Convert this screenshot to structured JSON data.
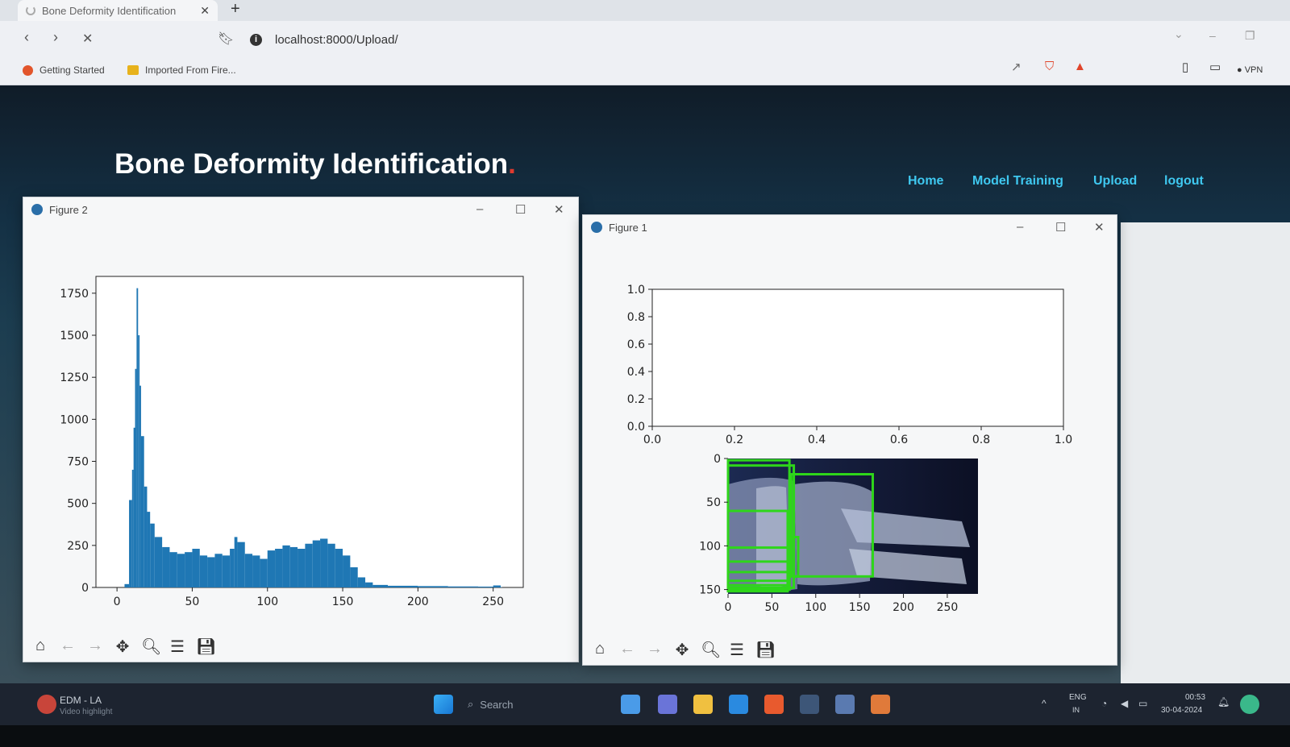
{
  "browser": {
    "tab_title": "Bone Deformity Identification",
    "url": "localhost:8000/Upload/",
    "bookmarks": [
      "Getting Started",
      "Imported From Fire..."
    ],
    "vpn_label": "VPN"
  },
  "site": {
    "title": "Bone Deformity Identification",
    "title_dot": ".",
    "nav": [
      "Home",
      "Model Training",
      "Upload",
      "logout"
    ]
  },
  "figure2": {
    "window_title": "Figure 2",
    "chart_data": {
      "type": "bar",
      "title": "",
      "xlabel": "",
      "ylabel": "",
      "xlim": [
        -14,
        270
      ],
      "ylim": [
        0,
        1850
      ],
      "xticks": [
        0,
        50,
        100,
        150,
        200,
        250
      ],
      "yticks": [
        0,
        250,
        500,
        750,
        1000,
        1250,
        1500,
        1750
      ],
      "color": "#1f77b4",
      "x": [
        0,
        5,
        8,
        10,
        11,
        12,
        13,
        14,
        15,
        16,
        18,
        20,
        22,
        25,
        30,
        35,
        40,
        45,
        50,
        55,
        60,
        65,
        70,
        75,
        78,
        80,
        85,
        90,
        95,
        100,
        105,
        110,
        115,
        120,
        125,
        130,
        135,
        140,
        145,
        150,
        155,
        160,
        165,
        170,
        180,
        200,
        220,
        240,
        250,
        255
      ],
      "values": [
        0,
        20,
        520,
        700,
        950,
        1300,
        1780,
        1500,
        1200,
        900,
        600,
        450,
        380,
        300,
        240,
        210,
        200,
        210,
        230,
        190,
        180,
        200,
        190,
        230,
        300,
        270,
        200,
        190,
        170,
        220,
        230,
        250,
        240,
        230,
        260,
        280,
        290,
        260,
        230,
        190,
        120,
        60,
        30,
        15,
        10,
        8,
        6,
        5,
        12,
        2
      ]
    }
  },
  "figure1": {
    "window_title": "Figure 1",
    "top_axes": {
      "chart_data": {
        "type": "line",
        "title": "",
        "xlabel": "",
        "ylabel": "",
        "xlim": [
          0,
          1
        ],
        "ylim": [
          0,
          1
        ],
        "xticks": [
          "0.0",
          "0.2",
          "0.4",
          "0.6",
          "0.8",
          "1.0"
        ],
        "yticks": [
          "0.0",
          "0.2",
          "0.4",
          "0.6",
          "0.8",
          "1.0"
        ],
        "series": []
      }
    },
    "image_axes": {
      "xticks": [
        "0",
        "50",
        "100",
        "150",
        "200",
        "250"
      ],
      "yticks": [
        "0",
        "50",
        "100",
        "150"
      ],
      "box_color": "#2ed61a"
    }
  },
  "taskbar": {
    "app_label": "EDM - LA",
    "app_sub": "Video highlight",
    "search_placeholder": "Search",
    "lang": "ENG",
    "lang_sub": "IN",
    "time": "00:53",
    "date": "30-04-2024"
  }
}
